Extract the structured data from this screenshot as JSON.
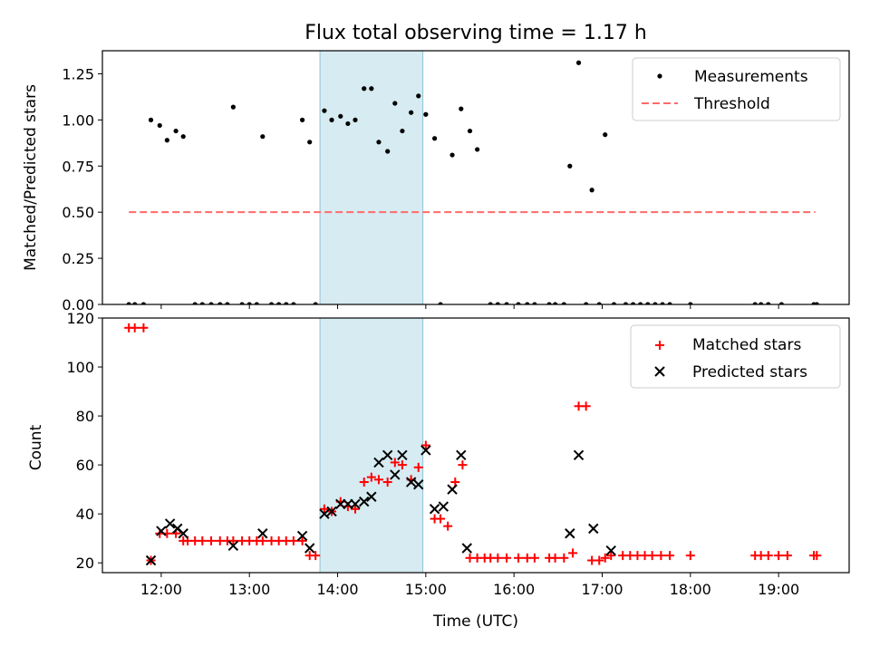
{
  "title": "Flux total observing time = 1.17 h",
  "chart_data": [
    {
      "type": "scatter",
      "ylabel": "Matched/Predicted stars",
      "ylim": [
        0,
        1.375
      ],
      "yticks": [
        "0.00",
        "0.25",
        "0.50",
        "0.75",
        "1.00",
        "1.25"
      ],
      "xlim": [
        "11:20",
        "19:48"
      ],
      "shaded_span": [
        "13:48",
        "14:58"
      ],
      "legend": {
        "position": "top-right",
        "entries": [
          "Measurements",
          "Threshold"
        ]
      },
      "threshold": {
        "name": "Threshold",
        "value": 0.5,
        "x_range": [
          "11:38",
          "19:25"
        ],
        "color": "#ff6b6b"
      },
      "series": [
        {
          "name": "Measurements",
          "color": "#000000",
          "points": [
            [
              "11:38",
              0
            ],
            [
              "11:42",
              0
            ],
            [
              "11:48",
              0
            ],
            [
              "11:53",
              1.0
            ],
            [
              "11:59",
              0.97
            ],
            [
              "12:04",
              0.89
            ],
            [
              "12:10",
              0.94
            ],
            [
              "12:15",
              0.91
            ],
            [
              "12:23",
              0
            ],
            [
              "12:28",
              0
            ],
            [
              "12:34",
              0
            ],
            [
              "12:40",
              0
            ],
            [
              "12:45",
              0
            ],
            [
              "12:49",
              1.07
            ],
            [
              "12:55",
              0
            ],
            [
              "13:00",
              0
            ],
            [
              "13:05",
              0
            ],
            [
              "13:09",
              0.91
            ],
            [
              "13:15",
              0
            ],
            [
              "13:20",
              0
            ],
            [
              "13:25",
              0
            ],
            [
              "13:30",
              0
            ],
            [
              "13:36",
              1.0
            ],
            [
              "13:41",
              0.88
            ],
            [
              "13:45",
              0
            ],
            [
              "13:51",
              1.05
            ],
            [
              "13:56",
              1.0
            ],
            [
              "14:02",
              1.02
            ],
            [
              "14:07",
              0.98
            ],
            [
              "14:12",
              1.0
            ],
            [
              "14:18",
              1.17
            ],
            [
              "14:23",
              1.17
            ],
            [
              "14:28",
              0.88
            ],
            [
              "14:34",
              0.83
            ],
            [
              "14:39",
              1.09
            ],
            [
              "14:44",
              0.94
            ],
            [
              "14:50",
              1.04
            ],
            [
              "14:55",
              1.13
            ],
            [
              "15:00",
              1.03
            ],
            [
              "15:06",
              0.9
            ],
            [
              "15:10",
              0
            ],
            [
              "15:18",
              0.81
            ],
            [
              "15:24",
              1.06
            ],
            [
              "15:30",
              0.94
            ],
            [
              "15:35",
              0.84
            ],
            [
              "15:44",
              0
            ],
            [
              "15:49",
              0
            ],
            [
              "15:55",
              0
            ],
            [
              "16:03",
              0
            ],
            [
              "16:09",
              0
            ],
            [
              "16:14",
              0
            ],
            [
              "16:24",
              0
            ],
            [
              "16:28",
              0
            ],
            [
              "16:34",
              0
            ],
            [
              "16:38",
              0.75
            ],
            [
              "16:44",
              1.31
            ],
            [
              "16:49",
              0
            ],
            [
              "16:53",
              0.62
            ],
            [
              "16:58",
              0
            ],
            [
              "17:02",
              0.92
            ],
            [
              "17:08",
              0
            ],
            [
              "17:16",
              0
            ],
            [
              "17:21",
              0
            ],
            [
              "17:26",
              0
            ],
            [
              "17:31",
              0
            ],
            [
              "17:36",
              0
            ],
            [
              "17:41",
              0
            ],
            [
              "17:46",
              0
            ],
            [
              "18:00",
              0
            ],
            [
              "18:44",
              0
            ],
            [
              "18:48",
              0
            ],
            [
              "18:53",
              0
            ],
            [
              "19:02",
              0
            ],
            [
              "19:24",
              0
            ],
            [
              "19:26",
              0
            ]
          ]
        }
      ]
    },
    {
      "type": "scatter",
      "xlabel": "Time (UTC)",
      "ylabel": "Count",
      "ylim": [
        16,
        120
      ],
      "yticks": [
        "20",
        "40",
        "60",
        "80",
        "100",
        "120"
      ],
      "xticks": [
        "12:00",
        "13:00",
        "14:00",
        "15:00",
        "16:00",
        "17:00",
        "18:00",
        "19:00"
      ],
      "xlim": [
        "11:20",
        "19:48"
      ],
      "shaded_span": [
        "13:48",
        "14:58"
      ],
      "legend": {
        "position": "top-right",
        "entries": [
          "Matched stars",
          "Predicted stars"
        ]
      },
      "series": [
        {
          "name": "Matched stars",
          "color": "#ff0000",
          "marker": "plus",
          "points": [
            [
              "11:38",
              116
            ],
            [
              "11:42",
              116
            ],
            [
              "11:48",
              116
            ],
            [
              "11:53",
              21
            ],
            [
              "11:59",
              32
            ],
            [
              "12:04",
              32
            ],
            [
              "12:10",
              32
            ],
            [
              "12:15",
              29
            ],
            [
              "12:18",
              29
            ],
            [
              "12:23",
              29
            ],
            [
              "12:28",
              29
            ],
            [
              "12:34",
              29
            ],
            [
              "12:40",
              29
            ],
            [
              "12:45",
              29
            ],
            [
              "12:49",
              29
            ],
            [
              "12:55",
              29
            ],
            [
              "13:00",
              29
            ],
            [
              "13:05",
              29
            ],
            [
              "13:09",
              29
            ],
            [
              "13:15",
              29
            ],
            [
              "13:20",
              29
            ],
            [
              "13:25",
              29
            ],
            [
              "13:30",
              29
            ],
            [
              "13:36",
              29
            ],
            [
              "13:41",
              23
            ],
            [
              "13:45",
              23
            ],
            [
              "13:51",
              42
            ],
            [
              "13:56",
              41
            ],
            [
              "14:02",
              45
            ],
            [
              "14:07",
              43
            ],
            [
              "14:12",
              42
            ],
            [
              "14:18",
              53
            ],
            [
              "14:23",
              55
            ],
            [
              "14:28",
              54
            ],
            [
              "14:34",
              53
            ],
            [
              "14:39",
              61
            ],
            [
              "14:44",
              60
            ],
            [
              "14:50",
              54
            ],
            [
              "14:55",
              59
            ],
            [
              "15:00",
              68
            ],
            [
              "15:06",
              38
            ],
            [
              "15:10",
              38
            ],
            [
              "15:15",
              35
            ],
            [
              "15:20",
              53
            ],
            [
              "15:25",
              60
            ],
            [
              "15:30",
              22
            ],
            [
              "15:35",
              22
            ],
            [
              "15:40",
              22
            ],
            [
              "15:44",
              22
            ],
            [
              "15:49",
              22
            ],
            [
              "15:55",
              22
            ],
            [
              "16:03",
              22
            ],
            [
              "16:09",
              22
            ],
            [
              "16:14",
              22
            ],
            [
              "16:24",
              22
            ],
            [
              "16:28",
              22
            ],
            [
              "16:34",
              22
            ],
            [
              "16:40",
              24
            ],
            [
              "16:44",
              84
            ],
            [
              "16:49",
              84
            ],
            [
              "16:53",
              21
            ],
            [
              "16:58",
              21
            ],
            [
              "17:02",
              22
            ],
            [
              "17:06",
              23
            ],
            [
              "17:14",
              23
            ],
            [
              "17:19",
              23
            ],
            [
              "17:24",
              23
            ],
            [
              "17:29",
              23
            ],
            [
              "17:34",
              23
            ],
            [
              "17:40",
              23
            ],
            [
              "17:46",
              23
            ],
            [
              "18:00",
              23
            ],
            [
              "18:44",
              23
            ],
            [
              "18:48",
              23
            ],
            [
              "18:53",
              23
            ],
            [
              "19:00",
              23
            ],
            [
              "19:06",
              23
            ],
            [
              "19:24",
              23
            ],
            [
              "19:26",
              23
            ]
          ]
        },
        {
          "name": "Predicted stars",
          "color": "#000000",
          "marker": "x",
          "points": [
            [
              "11:53",
              21
            ],
            [
              "12:00",
              33
            ],
            [
              "12:06",
              36
            ],
            [
              "12:11",
              34
            ],
            [
              "12:15",
              32
            ],
            [
              "12:49",
              27
            ],
            [
              "13:09",
              32
            ],
            [
              "13:36",
              31
            ],
            [
              "13:41",
              26
            ],
            [
              "13:51",
              40
            ],
            [
              "13:56",
              41
            ],
            [
              "14:02",
              44
            ],
            [
              "14:07",
              44
            ],
            [
              "14:12",
              44
            ],
            [
              "14:18",
              45
            ],
            [
              "14:23",
              47
            ],
            [
              "14:28",
              61
            ],
            [
              "14:34",
              64
            ],
            [
              "14:39",
              56
            ],
            [
              "14:44",
              64
            ],
            [
              "14:50",
              53
            ],
            [
              "14:55",
              52
            ],
            [
              "15:00",
              66
            ],
            [
              "15:06",
              42
            ],
            [
              "15:12",
              43
            ],
            [
              "15:18",
              50
            ],
            [
              "15:24",
              64
            ],
            [
              "15:28",
              26
            ],
            [
              "16:38",
              32
            ],
            [
              "16:44",
              64
            ],
            [
              "16:54",
              34
            ],
            [
              "17:06",
              25
            ]
          ]
        }
      ]
    }
  ]
}
